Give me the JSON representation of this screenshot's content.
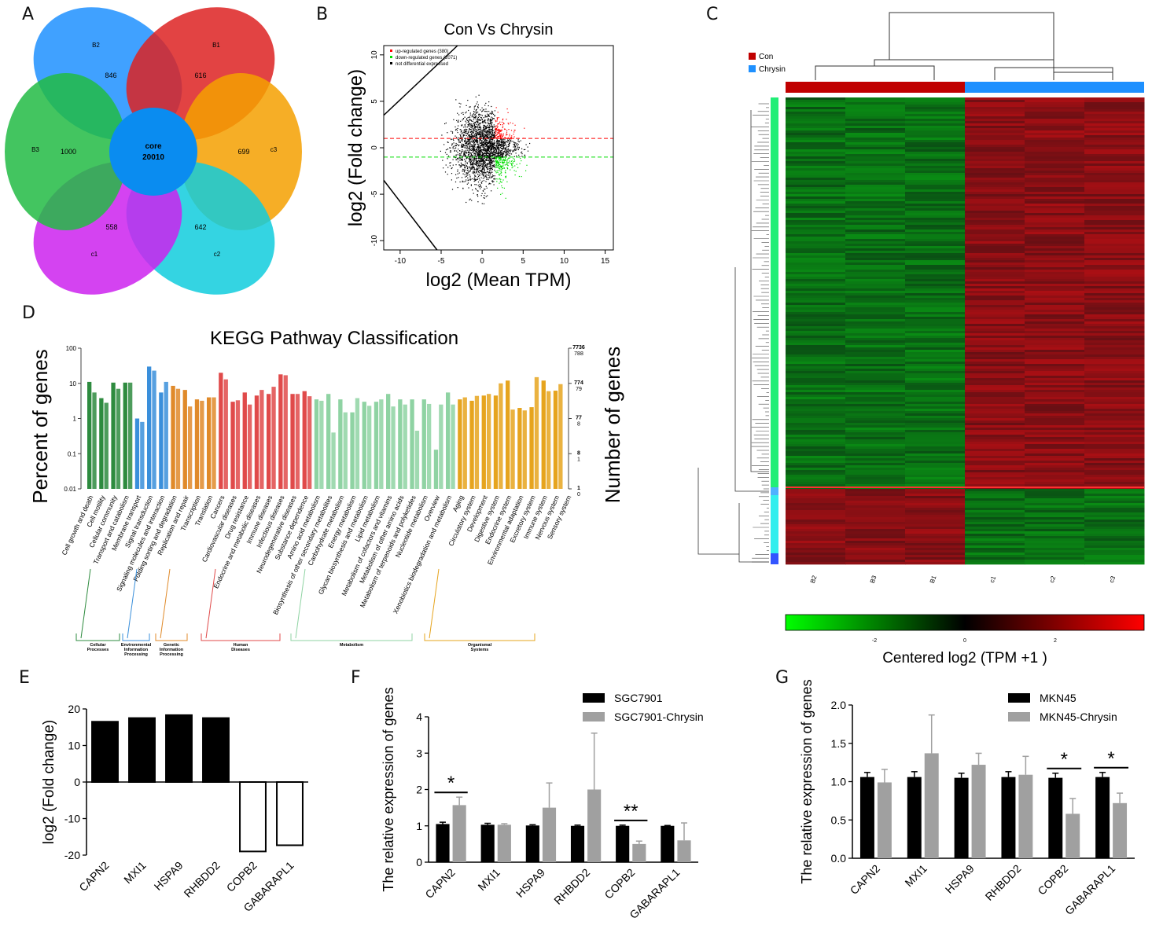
{
  "panel_labels": {
    "a": "A",
    "b": "B",
    "c": "C",
    "d": "D",
    "e": "E",
    "f": "F",
    "g": "G"
  },
  "colors": {
    "venn": [
      "#1e90ff",
      "#dd2222",
      "#f5a000",
      "#11ccdd",
      "#cc22ee",
      "#22bb44"
    ],
    "core": "#0a8cf0",
    "up": "#ff0000",
    "down": "#00dd00",
    "nd": "#000000",
    "con": "#c00000",
    "chrysin": "#1e90ff",
    "kegg": [
      "#2e8b3f",
      "#3a8fdb",
      "#e08a2a",
      "#e04a4a",
      "#8fd3a3",
      "#e6a41e"
    ],
    "black": "#000000",
    "gray": "#a0a0a0"
  },
  "venn": {
    "core_label": "core",
    "core_value": "20010",
    "petals": [
      {
        "name": "B2",
        "value": "846"
      },
      {
        "name": "B1",
        "value": "616"
      },
      {
        "name": "c3",
        "value": "699"
      },
      {
        "name": "c2",
        "value": "642"
      },
      {
        "name": "c1",
        "value": "558"
      },
      {
        "name": "B3",
        "value": "1000"
      }
    ]
  },
  "ma_plot": {
    "title": "Con Vs Chrysin",
    "xlabel": "log2 (Mean TPM)",
    "ylabel": "log2 (Fold change)",
    "xticks": [
      "-10",
      "-5",
      "0",
      "5",
      "10",
      "15"
    ],
    "yticks": [
      "-10",
      "-5",
      "0",
      "5",
      "10"
    ],
    "legend": [
      "up-regulated genes (380)",
      "down-regulated genes (2071)",
      "not differential expressed"
    ]
  },
  "heatmap": {
    "legend": [
      "Con",
      "Chrysin"
    ],
    "samples": [
      "B2",
      "B3",
      "B1",
      "c1",
      "c2",
      "c3"
    ],
    "scale_label": "Centered log2 (TPM +1 )",
    "scale_ticks": [
      "-2",
      "0",
      "2"
    ]
  },
  "kegg": {
    "title": "KEGG Pathway Classification",
    "ylabel_left": "Percent of genes",
    "ylabel_right": "Number of genes",
    "left_ticks": [
      "100",
      "10",
      "1",
      "0.1",
      "0.01"
    ],
    "right_ticks_bold": [
      "7736",
      "774",
      "77",
      "8",
      "1"
    ],
    "right_ticks_small": [
      "788",
      "79",
      "8",
      "1",
      "0"
    ],
    "groups": [
      {
        "name": "Cellular Processes",
        "pathways": [
          "Cell growth and death",
          "Cell motility",
          "Cellular community",
          "Transport and catabolism"
        ]
      },
      {
        "name": "Environmental Information Processing",
        "pathways": [
          "Membrane transport",
          "Signal transduction",
          "Signaling molecules and interaction"
        ]
      },
      {
        "name": "Genetic Information Processing",
        "pathways": [
          "Folding sorting and degradation",
          "Replication and repair",
          "Transcription",
          "Translation"
        ]
      },
      {
        "name": "Human Diseases",
        "pathways": [
          "Cancers",
          "Cardiovascular diseases",
          "Drug resistance",
          "Endocrine and metabolic diseases",
          "Immune diseases",
          "Infectious diseases",
          "Neurodegenerative diseases",
          "Substance dependence"
        ]
      },
      {
        "name": "Metabolism",
        "pathways": [
          "Amino acid metabolism",
          "Biosynthesis of other secondary metabolites",
          "Carbohydrate metabolism",
          "Energy metabolism",
          "Glycan biosynthesis and metabolism",
          "Lipid metabolism",
          "Metabolism of cofactors and vitamins",
          "Metabolism of other amino acids",
          "Metabolism of terpenoids and polyketides",
          "Nucleotide metabolism",
          "Overview",
          "Xenobiotics biodegradation and metabolism"
        ]
      },
      {
        "name": "Organismal Systems",
        "pathways": [
          "Aging",
          "Circulatory system",
          "Development",
          "Digestive system",
          "Endocrine system",
          "Environmental adaptation",
          "Excretory system",
          "Immune system",
          "Nervous system",
          "Sensory system"
        ]
      }
    ],
    "group_labels": [
      [
        "Cellular",
        "Processes"
      ],
      [
        "Environmental",
        "Information",
        "Processing"
      ],
      [
        "Genetic",
        "Information",
        "Processing"
      ],
      [
        "Human",
        "Diseases"
      ],
      [
        "Metabolism"
      ],
      [
        "Organismal",
        "Systems"
      ]
    ]
  },
  "chart_data": [
    {
      "type": "bar",
      "panel": "D",
      "title": "KEGG Pathway Classification",
      "ylabel": "Percent of genes",
      "yscale": "log",
      "ylim": [
        0.01,
        100
      ],
      "series": [
        {
          "name": "bar1",
          "values": [
            11,
            3.8,
            10.5,
            10.5,
            1,
            30,
            5.5,
            8.5,
            6.5,
            3.5,
            4,
            20,
            3,
            5.5,
            4.5,
            5,
            18,
            5,
            6,
            3.5,
            5,
            3.5,
            1.5,
            3,
            3,
            5,
            3.5,
            3.5,
            3.5,
            0.13,
            5.5,
            3.5,
            3.2,
            4.5,
            4.5,
            12,
            2,
            2.1,
            12,
            6.2
          ]
        },
        {
          "name": "bar2",
          "values": [
            5.5,
            2.8,
            7,
            10.5,
            0.8,
            23,
            11,
            7,
            2.2,
            3.2,
            4,
            13,
            3.3,
            2.5,
            6.5,
            8,
            17,
            5,
            4.3,
            3.2,
            0.4,
            1.5,
            3.8,
            2.3,
            3.5,
            2.2,
            2.5,
            0.45,
            2.6,
            2.5,
            2.5,
            4,
            4.4,
            5,
            10,
            1.8,
            1.7,
            15,
            6,
            9.5
          ]
        }
      ]
    },
    {
      "type": "bar",
      "panel": "E",
      "ylabel": "log2 (Fold change)",
      "ylim": [
        -20,
        20
      ],
      "categories": [
        "CAPN2",
        "MXI1",
        "HSPA9",
        "RHBDD2",
        "COPB2",
        "GABARAPL1"
      ],
      "values": [
        16.5,
        17.5,
        18.3,
        17.5,
        -19,
        -17.3
      ],
      "yticks": [
        "20",
        "10",
        "0",
        "-10",
        "-20"
      ]
    },
    {
      "type": "bar",
      "panel": "F",
      "ylabel": "The relative expression of genes",
      "ylim": [
        0,
        4
      ],
      "categories": [
        "CAPN2",
        "MXI1",
        "HSPA9",
        "RHBDD2",
        "COPB2",
        "GABARAPL1"
      ],
      "series": [
        {
          "name": "SGC7901",
          "values": [
            1.05,
            1.03,
            1.01,
            1.0,
            1.0,
            1.0
          ],
          "errors": [
            0.05,
            0.04,
            0.02,
            0.02,
            0.02,
            0.01
          ]
        },
        {
          "name": "SGC7901-Chrysin",
          "values": [
            1.57,
            1.03,
            1.5,
            2.0,
            0.5,
            0.6
          ],
          "errors": [
            0.22,
            0.03,
            0.68,
            1.55,
            0.08,
            0.48
          ]
        }
      ],
      "significance": [
        "*",
        "",
        "",
        "",
        "**",
        ""
      ],
      "yticks": [
        "0",
        "1",
        "2",
        "3",
        "4"
      ]
    },
    {
      "type": "bar",
      "panel": "G",
      "ylabel": "The relative expression of genes",
      "ylim": [
        0,
        2.0
      ],
      "categories": [
        "CAPN2",
        "MXI1",
        "HSPA9",
        "RHBDD2",
        "COPB2",
        "GABARAPL1"
      ],
      "series": [
        {
          "name": "MKN45",
          "values": [
            1.06,
            1.06,
            1.05,
            1.06,
            1.05,
            1.06
          ],
          "errors": [
            0.06,
            0.07,
            0.06,
            0.07,
            0.06,
            0.06
          ]
        },
        {
          "name": "MKN45-Chrysin",
          "values": [
            0.99,
            1.37,
            1.22,
            1.09,
            0.58,
            0.72
          ],
          "errors": [
            0.17,
            0.5,
            0.15,
            0.24,
            0.2,
            0.13
          ]
        }
      ],
      "significance": [
        "",
        "",
        "",
        "",
        "*",
        "*"
      ],
      "yticks": [
        "0.0",
        "0.5",
        "1.0",
        "1.5",
        "2.0"
      ]
    }
  ]
}
